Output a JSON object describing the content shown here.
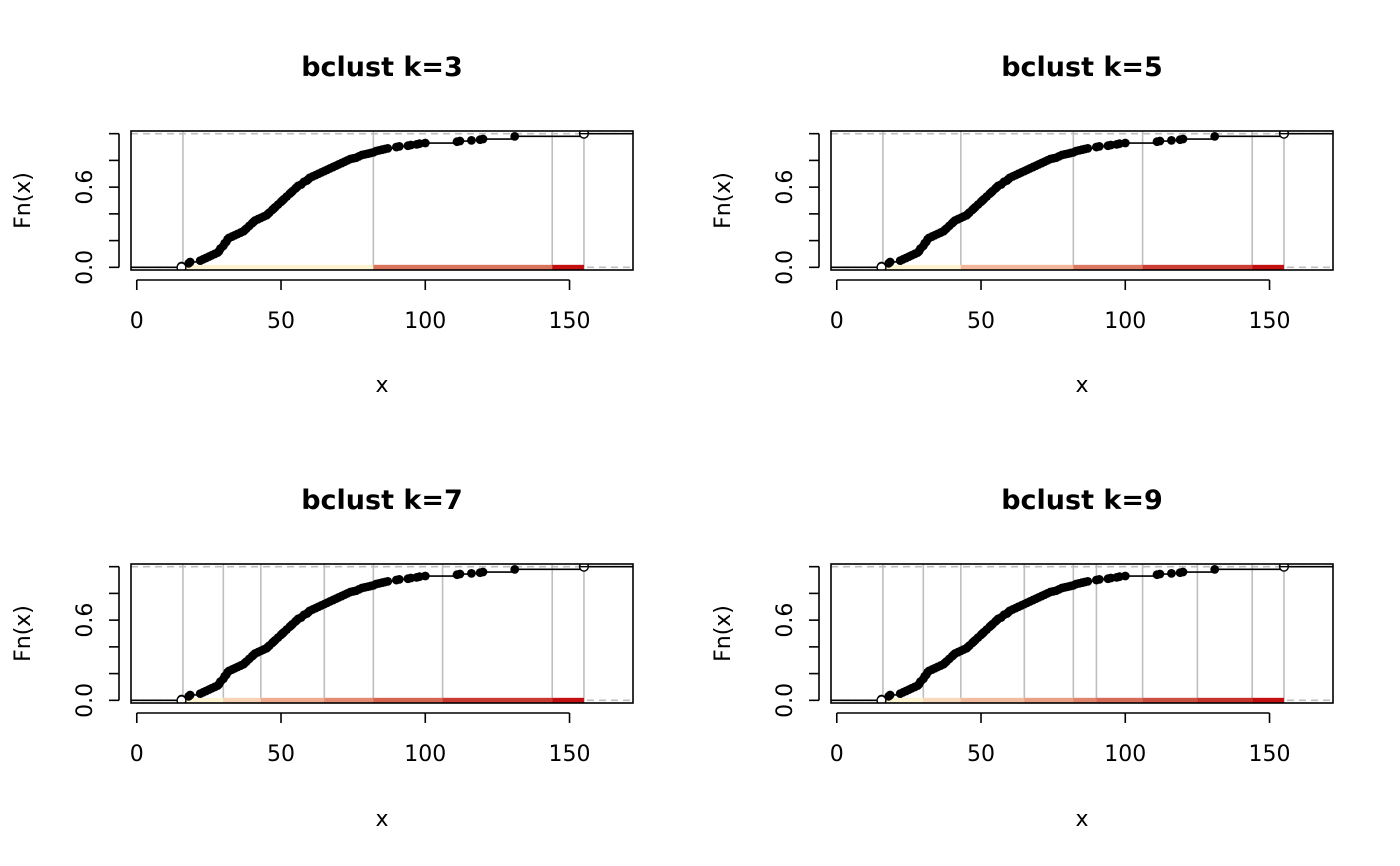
{
  "chart_data": [
    {
      "type": "step",
      "title": "bclust k=3",
      "xlabel": "x",
      "ylabel": "Fn(x)",
      "xlim": [
        -2,
        172
      ],
      "ylim": [
        -0.02,
        1.02
      ],
      "x_ticks": [
        0,
        50,
        100,
        150
      ],
      "x_tick_labels": [
        "0",
        "50",
        "100",
        "150"
      ],
      "y_ticks": [
        0.0,
        0.2,
        0.4,
        0.6,
        0.8,
        1.0
      ],
      "y_tick_labels": [
        "0.0",
        "",
        "",
        "0.6",
        "",
        ""
      ],
      "breaks": [
        16,
        82,
        144,
        155
      ],
      "bands": [
        {
          "from": 16,
          "to": 82,
          "color": "#fdf3d0"
        },
        {
          "from": 82,
          "to": 144,
          "color": "#d9735c"
        },
        {
          "from": 144,
          "to": 155,
          "color": "#c20f0f"
        }
      ]
    },
    {
      "type": "step",
      "title": "bclust k=5",
      "xlabel": "x",
      "ylabel": "Fn(x)",
      "xlim": [
        -2,
        172
      ],
      "ylim": [
        -0.02,
        1.02
      ],
      "x_ticks": [
        0,
        50,
        100,
        150
      ],
      "x_tick_labels": [
        "0",
        "50",
        "100",
        "150"
      ],
      "y_ticks": [
        0.0,
        0.2,
        0.4,
        0.6,
        0.8,
        1.0
      ],
      "y_tick_labels": [
        "0.0",
        "",
        "",
        "0.6",
        "",
        ""
      ],
      "breaks": [
        16,
        43,
        82,
        106,
        144,
        155
      ],
      "bands": [
        {
          "from": 16,
          "to": 43,
          "color": "#fdf3d0"
        },
        {
          "from": 43,
          "to": 82,
          "color": "#f2b79a"
        },
        {
          "from": 82,
          "to": 106,
          "color": "#dc7762"
        },
        {
          "from": 106,
          "to": 144,
          "color": "#cc3e36"
        },
        {
          "from": 144,
          "to": 155,
          "color": "#c20f0f"
        }
      ]
    },
    {
      "type": "step",
      "title": "bclust k=7",
      "xlabel": "x",
      "ylabel": "Fn(x)",
      "xlim": [
        -2,
        172
      ],
      "ylim": [
        -0.02,
        1.02
      ],
      "x_ticks": [
        0,
        50,
        100,
        150
      ],
      "x_tick_labels": [
        "0",
        "50",
        "100",
        "150"
      ],
      "y_ticks": [
        0.0,
        0.2,
        0.4,
        0.6,
        0.8,
        1.0
      ],
      "y_tick_labels": [
        "0.0",
        "",
        "",
        "0.6",
        "",
        ""
      ],
      "breaks": [
        16,
        30,
        43,
        65,
        82,
        106,
        144,
        155
      ],
      "bands": [
        {
          "from": 16,
          "to": 30,
          "color": "#fdf3d0"
        },
        {
          "from": 30,
          "to": 43,
          "color": "#f7d2b6"
        },
        {
          "from": 43,
          "to": 65,
          "color": "#efac90"
        },
        {
          "from": 65,
          "to": 82,
          "color": "#e38a72"
        },
        {
          "from": 82,
          "to": 106,
          "color": "#d6654f"
        },
        {
          "from": 106,
          "to": 144,
          "color": "#c93a31"
        },
        {
          "from": 144,
          "to": 155,
          "color": "#c20f0f"
        }
      ]
    },
    {
      "type": "step",
      "title": "bclust k=9",
      "xlabel": "x",
      "ylabel": "Fn(x)",
      "xlim": [
        -2,
        172
      ],
      "ylim": [
        -0.02,
        1.02
      ],
      "x_ticks": [
        0,
        50,
        100,
        150
      ],
      "x_tick_labels": [
        "0",
        "50",
        "100",
        "150"
      ],
      "y_ticks": [
        0.0,
        0.2,
        0.4,
        0.6,
        0.8,
        1.0
      ],
      "y_tick_labels": [
        "0.0",
        "",
        "",
        "0.6",
        "",
        ""
      ],
      "breaks": [
        16,
        30,
        43,
        65,
        82,
        90,
        106,
        125,
        144,
        155
      ],
      "bands": [
        {
          "from": 16,
          "to": 30,
          "color": "#fdf3d0"
        },
        {
          "from": 30,
          "to": 43,
          "color": "#f8d9be"
        },
        {
          "from": 43,
          "to": 65,
          "color": "#f2bc9f"
        },
        {
          "from": 65,
          "to": 82,
          "color": "#eaa086"
        },
        {
          "from": 82,
          "to": 90,
          "color": "#e0866e"
        },
        {
          "from": 90,
          "to": 106,
          "color": "#d66c57"
        },
        {
          "from": 106,
          "to": 125,
          "color": "#cc5042"
        },
        {
          "from": 125,
          "to": 144,
          "color": "#c5332b"
        },
        {
          "from": 144,
          "to": 155,
          "color": "#c20f0f"
        }
      ]
    }
  ],
  "ecdf": {
    "x": [
      15.5,
      18,
      18.5,
      22,
      23,
      24,
      25,
      26,
      27,
      28,
      28.5,
      29,
      30,
      30.5,
      31,
      31.5,
      32,
      33,
      34,
      35,
      36,
      37,
      37.5,
      38,
      39,
      40,
      40.5,
      41,
      42,
      43,
      44,
      45,
      45.5,
      46,
      47,
      47.5,
      48,
      49,
      50,
      50.5,
      51,
      52,
      53,
      53.5,
      54,
      55,
      55.5,
      56,
      57,
      58,
      59,
      59.5,
      60,
      61,
      62,
      63,
      64,
      65,
      66,
      67,
      68,
      69,
      70,
      71,
      72,
      73,
      74,
      75,
      76,
      77,
      78,
      79,
      80,
      81,
      82,
      83,
      84,
      85,
      86,
      87,
      90,
      91,
      94,
      95,
      97,
      98,
      100,
      111,
      112,
      116,
      119,
      120,
      131,
      155
    ],
    "y": [
      0.01,
      0.03,
      0.04,
      0.05,
      0.06,
      0.07,
      0.08,
      0.09,
      0.1,
      0.11,
      0.12,
      0.14,
      0.16,
      0.18,
      0.19,
      0.21,
      0.22,
      0.23,
      0.24,
      0.25,
      0.26,
      0.27,
      0.28,
      0.29,
      0.31,
      0.33,
      0.34,
      0.35,
      0.36,
      0.37,
      0.38,
      0.39,
      0.4,
      0.41,
      0.43,
      0.44,
      0.45,
      0.47,
      0.49,
      0.5,
      0.51,
      0.53,
      0.55,
      0.56,
      0.57,
      0.59,
      0.6,
      0.61,
      0.62,
      0.64,
      0.65,
      0.66,
      0.67,
      0.68,
      0.69,
      0.7,
      0.71,
      0.72,
      0.73,
      0.74,
      0.75,
      0.76,
      0.77,
      0.78,
      0.79,
      0.8,
      0.81,
      0.815,
      0.82,
      0.83,
      0.84,
      0.845,
      0.85,
      0.855,
      0.86,
      0.87,
      0.875,
      0.88,
      0.885,
      0.89,
      0.9,
      0.905,
      0.91,
      0.915,
      0.92,
      0.925,
      0.93,
      0.94,
      0.945,
      0.95,
      0.955,
      0.96,
      0.98,
      1.0
    ]
  }
}
